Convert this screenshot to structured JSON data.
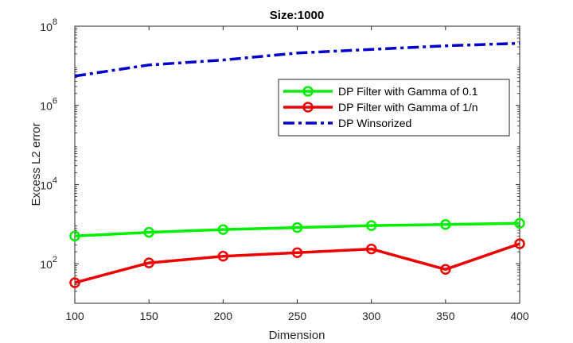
{
  "chart_data": {
    "type": "line",
    "title": "Size:1000",
    "xlabel": "Dimension",
    "ylabel": "Excess L2 error",
    "yscale": "log",
    "xlim": [
      100,
      400
    ],
    "ylim": [
      10,
      100000000
    ],
    "x": [
      100,
      150,
      200,
      250,
      300,
      350,
      400
    ],
    "x_ticks": [
      "100",
      "150",
      "200",
      "250",
      "300",
      "350",
      "400"
    ],
    "y_ticks": [
      {
        "base": "10",
        "exp": "2",
        "value": 100
      },
      {
        "base": "10",
        "exp": "4",
        "value": 10000
      },
      {
        "base": "10",
        "exp": "6",
        "value": 1000000
      },
      {
        "base": "10",
        "exp": "8",
        "value": 100000000
      }
    ],
    "series": [
      {
        "name": "DP Filter with Gamma of 0.1",
        "color": "#00ee00",
        "style": "solid",
        "marker": "circle",
        "values": [
          500,
          620,
          730,
          820,
          920,
          980,
          1050
        ]
      },
      {
        "name": "DP Filter with Gamma of 1/n",
        "color": "#ee0000",
        "style": "solid",
        "marker": "circle",
        "values": [
          33,
          105,
          155,
          190,
          235,
          72,
          320
        ]
      },
      {
        "name": "DP Winsorized",
        "color": "#0000cc",
        "style": "dashdot",
        "marker": "none",
        "values": [
          5500000,
          10500000,
          14000000,
          21000000,
          26000000,
          32000000,
          37000000
        ]
      }
    ],
    "legend_position": "top-right"
  }
}
